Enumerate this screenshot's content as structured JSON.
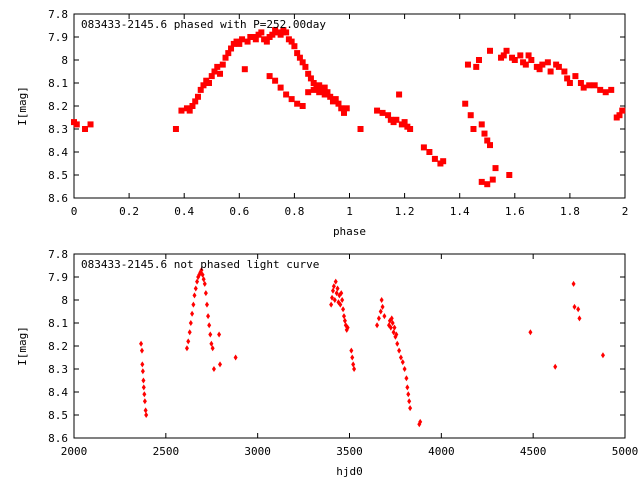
{
  "chart_data": [
    {
      "type": "scatter",
      "title": "083433-2145.6 phased with P=252.00day",
      "xlabel": "phase",
      "ylabel": "I[mag]",
      "xlim": [
        0,
        2
      ],
      "ylim": [
        8.6,
        7.8
      ],
      "y_inverted": true,
      "x_ticks": [
        "0",
        "0.2",
        "0.4",
        "0.6",
        "0.8",
        "1",
        "1.2",
        "1.4",
        "1.6",
        "1.8",
        "2"
      ],
      "x_tick_values": [
        0,
        0.2,
        0.4,
        0.6,
        0.8,
        1.0,
        1.2,
        1.4,
        1.6,
        1.8,
        2.0
      ],
      "y_ticks": [
        "7.8",
        "7.9",
        "8",
        "8.1",
        "8.2",
        "8.3",
        "8.4",
        "8.5",
        "8.6"
      ],
      "y_tick_values": [
        7.8,
        7.9,
        8.0,
        8.1,
        8.2,
        8.3,
        8.4,
        8.5,
        8.6
      ],
      "marker": "filled-square",
      "color": "#ff0000",
      "points": [
        [
          0.0,
          8.27
        ],
        [
          0.01,
          8.28
        ],
        [
          0.04,
          8.3
        ],
        [
          0.06,
          8.28
        ],
        [
          0.37,
          8.3
        ],
        [
          0.39,
          8.22
        ],
        [
          0.41,
          8.21
        ],
        [
          0.42,
          8.22
        ],
        [
          0.43,
          8.2
        ],
        [
          0.44,
          8.18
        ],
        [
          0.45,
          8.16
        ],
        [
          0.46,
          8.13
        ],
        [
          0.47,
          8.11
        ],
        [
          0.48,
          8.09
        ],
        [
          0.49,
          8.1
        ],
        [
          0.5,
          8.07
        ],
        [
          0.51,
          8.05
        ],
        [
          0.52,
          8.03
        ],
        [
          0.53,
          8.06
        ],
        [
          0.54,
          8.02
        ],
        [
          0.55,
          7.99
        ],
        [
          0.56,
          7.97
        ],
        [
          0.57,
          7.95
        ],
        [
          0.58,
          7.93
        ],
        [
          0.59,
          7.92
        ],
        [
          0.6,
          7.93
        ],
        [
          0.61,
          7.91
        ],
        [
          0.62,
          8.04
        ],
        [
          0.63,
          7.92
        ],
        [
          0.64,
          7.9
        ],
        [
          0.65,
          7.9
        ],
        [
          0.66,
          7.91
        ],
        [
          0.67,
          7.89
        ],
        [
          0.68,
          7.88
        ],
        [
          0.69,
          7.91
        ],
        [
          0.7,
          7.92
        ],
        [
          0.71,
          7.9
        ],
        [
          0.72,
          7.89
        ],
        [
          0.73,
          7.87
        ],
        [
          0.74,
          7.88
        ],
        [
          0.75,
          7.89
        ],
        [
          0.76,
          7.87
        ],
        [
          0.77,
          7.88
        ],
        [
          0.78,
          7.91
        ],
        [
          0.79,
          7.92
        ],
        [
          0.8,
          7.94
        ],
        [
          0.81,
          7.97
        ],
        [
          0.82,
          7.99
        ],
        [
          0.83,
          8.01
        ],
        [
          0.84,
          8.03
        ],
        [
          0.85,
          8.06
        ],
        [
          0.86,
          8.08
        ],
        [
          0.87,
          8.1
        ],
        [
          0.88,
          8.12
        ],
        [
          0.89,
          8.11
        ],
        [
          0.9,
          8.13
        ],
        [
          0.91,
          8.15
        ],
        [
          0.92,
          8.14
        ],
        [
          0.93,
          8.16
        ],
        [
          0.94,
          8.18
        ],
        [
          0.95,
          8.17
        ],
        [
          0.96,
          8.19
        ],
        [
          0.97,
          8.21
        ],
        [
          0.98,
          8.23
        ],
        [
          0.99,
          8.21
        ],
        [
          0.71,
          8.07
        ],
        [
          0.73,
          8.09
        ],
        [
          0.75,
          8.12
        ],
        [
          0.77,
          8.15
        ],
        [
          0.79,
          8.17
        ],
        [
          0.81,
          8.19
        ],
        [
          0.83,
          8.2
        ],
        [
          0.85,
          8.14
        ],
        [
          0.87,
          8.13
        ],
        [
          0.89,
          8.14
        ],
        [
          0.91,
          8.12
        ],
        [
          1.04,
          8.3
        ],
        [
          1.1,
          8.22
        ],
        [
          1.12,
          8.23
        ],
        [
          1.14,
          8.24
        ],
        [
          1.15,
          8.26
        ],
        [
          1.16,
          8.27
        ],
        [
          1.17,
          8.26
        ],
        [
          1.18,
          8.15
        ],
        [
          1.19,
          8.28
        ],
        [
          1.2,
          8.27
        ],
        [
          1.21,
          8.29
        ],
        [
          1.22,
          8.3
        ],
        [
          1.27,
          8.38
        ],
        [
          1.29,
          8.4
        ],
        [
          1.31,
          8.43
        ],
        [
          1.33,
          8.45
        ],
        [
          1.34,
          8.44
        ],
        [
          1.42,
          8.19
        ],
        [
          1.43,
          8.02
        ],
        [
          1.44,
          8.24
        ],
        [
          1.45,
          8.3
        ],
        [
          1.46,
          8.03
        ],
        [
          1.47,
          8.0
        ],
        [
          1.48,
          8.28
        ],
        [
          1.49,
          8.32
        ],
        [
          1.5,
          8.35
        ],
        [
          1.51,
          8.37
        ],
        [
          1.48,
          8.53
        ],
        [
          1.5,
          8.54
        ],
        [
          1.51,
          7.96
        ],
        [
          1.52,
          8.52
        ],
        [
          1.53,
          8.47
        ],
        [
          1.55,
          7.99
        ],
        [
          1.56,
          7.98
        ],
        [
          1.57,
          7.96
        ],
        [
          1.58,
          8.5
        ],
        [
          1.59,
          7.99
        ],
        [
          1.6,
          8.0
        ],
        [
          1.62,
          7.98
        ],
        [
          1.63,
          8.01
        ],
        [
          1.64,
          8.02
        ],
        [
          1.65,
          7.98
        ],
        [
          1.66,
          8.0
        ],
        [
          1.68,
          8.03
        ],
        [
          1.69,
          8.04
        ],
        [
          1.7,
          8.02
        ],
        [
          1.72,
          8.01
        ],
        [
          1.73,
          8.05
        ],
        [
          1.75,
          8.02
        ],
        [
          1.76,
          8.03
        ],
        [
          1.78,
          8.05
        ],
        [
          1.79,
          8.08
        ],
        [
          1.8,
          8.1
        ],
        [
          1.82,
          8.07
        ],
        [
          1.84,
          8.1
        ],
        [
          1.85,
          8.12
        ],
        [
          1.87,
          8.11
        ],
        [
          1.89,
          8.11
        ],
        [
          1.91,
          8.13
        ],
        [
          1.93,
          8.14
        ],
        [
          1.95,
          8.13
        ],
        [
          1.97,
          8.25
        ],
        [
          1.98,
          8.24
        ],
        [
          1.99,
          8.22
        ]
      ]
    },
    {
      "type": "scatter",
      "title": "083433-2145.6 not phased light curve",
      "xlabel": "hjd0",
      "ylabel": "I[mag]",
      "xlim": [
        2000,
        5000
      ],
      "ylim": [
        8.6,
        7.8
      ],
      "y_inverted": true,
      "x_ticks": [
        "2000",
        "2500",
        "3000",
        "3500",
        "4000",
        "4500",
        "5000"
      ],
      "x_tick_values": [
        2000,
        2500,
        3000,
        3500,
        4000,
        4500,
        5000
      ],
      "y_ticks": [
        "7.8",
        "7.9",
        "8",
        "8.1",
        "8.2",
        "8.3",
        "8.4",
        "8.5",
        "8.6"
      ],
      "y_tick_values": [
        7.8,
        7.9,
        8.0,
        8.1,
        8.2,
        8.3,
        8.4,
        8.5,
        8.6
      ],
      "marker": "filled-diamond",
      "color": "#ff0000",
      "points": [
        [
          2365,
          8.19
        ],
        [
          2370,
          8.22
        ],
        [
          2372,
          8.28
        ],
        [
          2375,
          8.31
        ],
        [
          2378,
          8.35
        ],
        [
          2380,
          8.38
        ],
        [
          2383,
          8.41
        ],
        [
          2386,
          8.44
        ],
        [
          2390,
          8.48
        ],
        [
          2393,
          8.5
        ],
        [
          2615,
          8.21
        ],
        [
          2622,
          8.18
        ],
        [
          2630,
          8.14
        ],
        [
          2636,
          8.1
        ],
        [
          2643,
          8.06
        ],
        [
          2650,
          8.02
        ],
        [
          2656,
          7.98
        ],
        [
          2663,
          7.95
        ],
        [
          2670,
          7.92
        ],
        [
          2676,
          7.9
        ],
        [
          2682,
          7.89
        ],
        [
          2688,
          7.88
        ],
        [
          2694,
          7.87
        ],
        [
          2700,
          7.89
        ],
        [
          2706,
          7.91
        ],
        [
          2712,
          7.93
        ],
        [
          2718,
          7.97
        ],
        [
          2724,
          8.02
        ],
        [
          2730,
          8.07
        ],
        [
          2736,
          8.11
        ],
        [
          2742,
          8.15
        ],
        [
          2748,
          8.19
        ],
        [
          2755,
          8.21
        ],
        [
          2762,
          8.3
        ],
        [
          2790,
          8.15
        ],
        [
          2795,
          8.28
        ],
        [
          2880,
          8.25
        ],
        [
          3400,
          8.02
        ],
        [
          3405,
          7.99
        ],
        [
          3410,
          7.96
        ],
        [
          3415,
          7.94
        ],
        [
          3420,
          8.0
        ],
        [
          3425,
          7.92
        ],
        [
          3430,
          7.97
        ],
        [
          3435,
          7.95
        ],
        [
          3440,
          8.01
        ],
        [
          3445,
          7.98
        ],
        [
          3450,
          8.02
        ],
        [
          3455,
          7.97
        ],
        [
          3460,
          8.0
        ],
        [
          3465,
          8.04
        ],
        [
          3470,
          8.07
        ],
        [
          3475,
          8.09
        ],
        [
          3480,
          8.11
        ],
        [
          3485,
          8.13
        ],
        [
          3490,
          8.12
        ],
        [
          3510,
          8.22
        ],
        [
          3515,
          8.25
        ],
        [
          3520,
          8.28
        ],
        [
          3525,
          8.3
        ],
        [
          3650,
          8.11
        ],
        [
          3660,
          8.08
        ],
        [
          3670,
          8.05
        ],
        [
          3675,
          8.0
        ],
        [
          3680,
          8.03
        ],
        [
          3690,
          8.07
        ],
        [
          3715,
          8.11
        ],
        [
          3720,
          8.09
        ],
        [
          3725,
          8.12
        ],
        [
          3730,
          8.08
        ],
        [
          3735,
          8.1
        ],
        [
          3740,
          8.14
        ],
        [
          3745,
          8.12
        ],
        [
          3750,
          8.16
        ],
        [
          3755,
          8.15
        ],
        [
          3760,
          8.19
        ],
        [
          3770,
          8.22
        ],
        [
          3780,
          8.25
        ],
        [
          3790,
          8.27
        ],
        [
          3800,
          8.3
        ],
        [
          3810,
          8.34
        ],
        [
          3815,
          8.38
        ],
        [
          3820,
          8.41
        ],
        [
          3825,
          8.44
        ],
        [
          3830,
          8.47
        ],
        [
          3880,
          8.54
        ],
        [
          3885,
          8.53
        ],
        [
          4485,
          8.14
        ],
        [
          4620,
          8.29
        ],
        [
          4720,
          7.93
        ],
        [
          4725,
          8.03
        ],
        [
          4745,
          8.04
        ],
        [
          4752,
          8.08
        ],
        [
          4880,
          8.24
        ]
      ]
    }
  ]
}
